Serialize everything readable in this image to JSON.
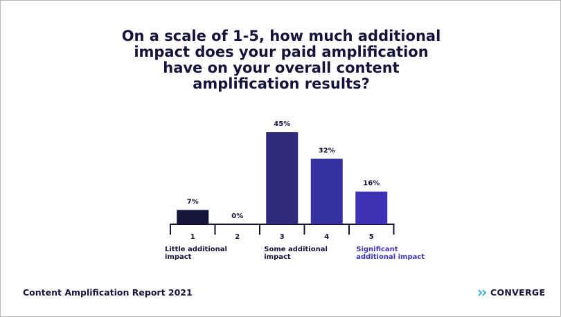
{
  "title": "On a scale of 1-5, how much additional impact does your paid amplification have on your overall content amplification results?",
  "footer": {
    "report": "Content Amplification Report 2021",
    "brand": "CONVERGE"
  },
  "chart_data": {
    "type": "bar",
    "categories": [
      "1",
      "2",
      "3",
      "4",
      "5"
    ],
    "values": [
      7,
      0,
      45,
      32,
      16
    ],
    "value_labels": [
      "7%",
      "0%",
      "45%",
      "32%",
      "16%"
    ],
    "category_descriptions": [
      "Little additional impact",
      "",
      "Some additional impact",
      "",
      "Significant additional impact"
    ],
    "ylim": [
      0,
      45
    ],
    "grid": false,
    "colors": [
      "#17143a",
      "#2c2770",
      "#2f2a7c",
      "#3530a0",
      "#3c34b4"
    ],
    "axis_color": "#15133a"
  }
}
